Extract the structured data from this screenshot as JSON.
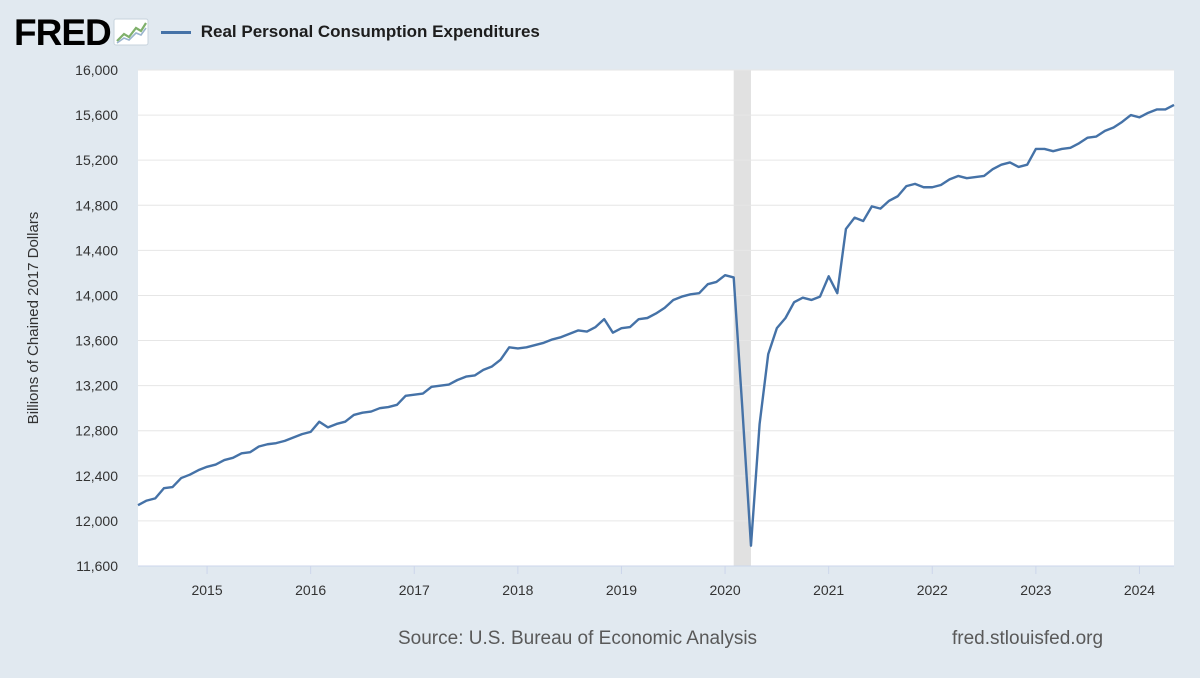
{
  "header": {
    "logo_text": "FRED",
    "logo_icon": "line-graph-icon",
    "legend_label": "Real Personal Consumption Expenditures"
  },
  "footer": {
    "source": "Source: U.S. Bureau of Economic Analysis",
    "url": "fred.stlouisfed.org"
  },
  "colors": {
    "line": "#4572a7",
    "recession": "#e1e1e1",
    "background": "#e1e9f0",
    "plot": "#ffffff"
  },
  "chart_data": {
    "type": "line",
    "title": "",
    "ylabel": "Billions of Chained 2017 Dollars",
    "xlabel": "",
    "ylim": [
      11600,
      16000
    ],
    "yticks": [
      11600,
      12000,
      12400,
      12800,
      13200,
      13600,
      14000,
      14400,
      14800,
      15200,
      15600,
      16000
    ],
    "xlim": [
      "2014-05",
      "2024-05"
    ],
    "xticks": [
      "2015",
      "2016",
      "2017",
      "2018",
      "2019",
      "2020",
      "2021",
      "2022",
      "2023",
      "2024"
    ],
    "grid": "horizontal",
    "legend": "top-left",
    "recession_shading": {
      "start": "2020-02",
      "end": "2020-04"
    },
    "series": [
      {
        "name": "Real Personal Consumption Expenditures",
        "x": [
          "2014-05",
          "2014-06",
          "2014-07",
          "2014-08",
          "2014-09",
          "2014-10",
          "2014-11",
          "2014-12",
          "2015-01",
          "2015-02",
          "2015-03",
          "2015-04",
          "2015-05",
          "2015-06",
          "2015-07",
          "2015-08",
          "2015-09",
          "2015-10",
          "2015-11",
          "2015-12",
          "2016-01",
          "2016-02",
          "2016-03",
          "2016-04",
          "2016-05",
          "2016-06",
          "2016-07",
          "2016-08",
          "2016-09",
          "2016-10",
          "2016-11",
          "2016-12",
          "2017-01",
          "2017-02",
          "2017-03",
          "2017-04",
          "2017-05",
          "2017-06",
          "2017-07",
          "2017-08",
          "2017-09",
          "2017-10",
          "2017-11",
          "2017-12",
          "2018-01",
          "2018-02",
          "2018-03",
          "2018-04",
          "2018-05",
          "2018-06",
          "2018-07",
          "2018-08",
          "2018-09",
          "2018-10",
          "2018-11",
          "2018-12",
          "2019-01",
          "2019-02",
          "2019-03",
          "2019-04",
          "2019-05",
          "2019-06",
          "2019-07",
          "2019-08",
          "2019-09",
          "2019-10",
          "2019-11",
          "2019-12",
          "2020-01",
          "2020-02",
          "2020-03",
          "2020-04",
          "2020-05",
          "2020-06",
          "2020-07",
          "2020-08",
          "2020-09",
          "2020-10",
          "2020-11",
          "2020-12",
          "2021-01",
          "2021-02",
          "2021-03",
          "2021-04",
          "2021-05",
          "2021-06",
          "2021-07",
          "2021-08",
          "2021-09",
          "2021-10",
          "2021-11",
          "2021-12",
          "2022-01",
          "2022-02",
          "2022-03",
          "2022-04",
          "2022-05",
          "2022-06",
          "2022-07",
          "2022-08",
          "2022-09",
          "2022-10",
          "2022-11",
          "2022-12",
          "2023-01",
          "2023-02",
          "2023-03",
          "2023-04",
          "2023-05",
          "2023-06",
          "2023-07",
          "2023-08",
          "2023-09",
          "2023-10",
          "2023-11",
          "2023-12",
          "2024-01",
          "2024-02",
          "2024-03",
          "2024-04",
          "2024-05"
        ],
        "values": [
          12140,
          12180,
          12200,
          12290,
          12300,
          12380,
          12410,
          12450,
          12480,
          12500,
          12540,
          12560,
          12600,
          12610,
          12660,
          12680,
          12690,
          12710,
          12740,
          12770,
          12790,
          12880,
          12830,
          12860,
          12880,
          12940,
          12960,
          12970,
          13000,
          13010,
          13030,
          13110,
          13120,
          13130,
          13190,
          13200,
          13210,
          13250,
          13280,
          13290,
          13340,
          13370,
          13430,
          13540,
          13530,
          13540,
          13560,
          13580,
          13610,
          13630,
          13660,
          13690,
          13680,
          13720,
          13790,
          13670,
          13710,
          13720,
          13790,
          13800,
          13840,
          13890,
          13960,
          13990,
          14010,
          14020,
          14100,
          14120,
          14180,
          14160,
          13000,
          11780,
          12860,
          13480,
          13710,
          13800,
          13940,
          13980,
          13960,
          13990,
          14170,
          14020,
          14590,
          14690,
          14660,
          14790,
          14770,
          14840,
          14880,
          14970,
          14990,
          14960,
          14960,
          14980,
          15030,
          15060,
          15040,
          15050,
          15060,
          15120,
          15160,
          15180,
          15140,
          15160,
          15300,
          15300,
          15280,
          15300,
          15310,
          15350,
          15400,
          15410,
          15460,
          15490,
          15540,
          15600,
          15580,
          15620,
          15650,
          15650,
          15690
        ]
      }
    ]
  }
}
